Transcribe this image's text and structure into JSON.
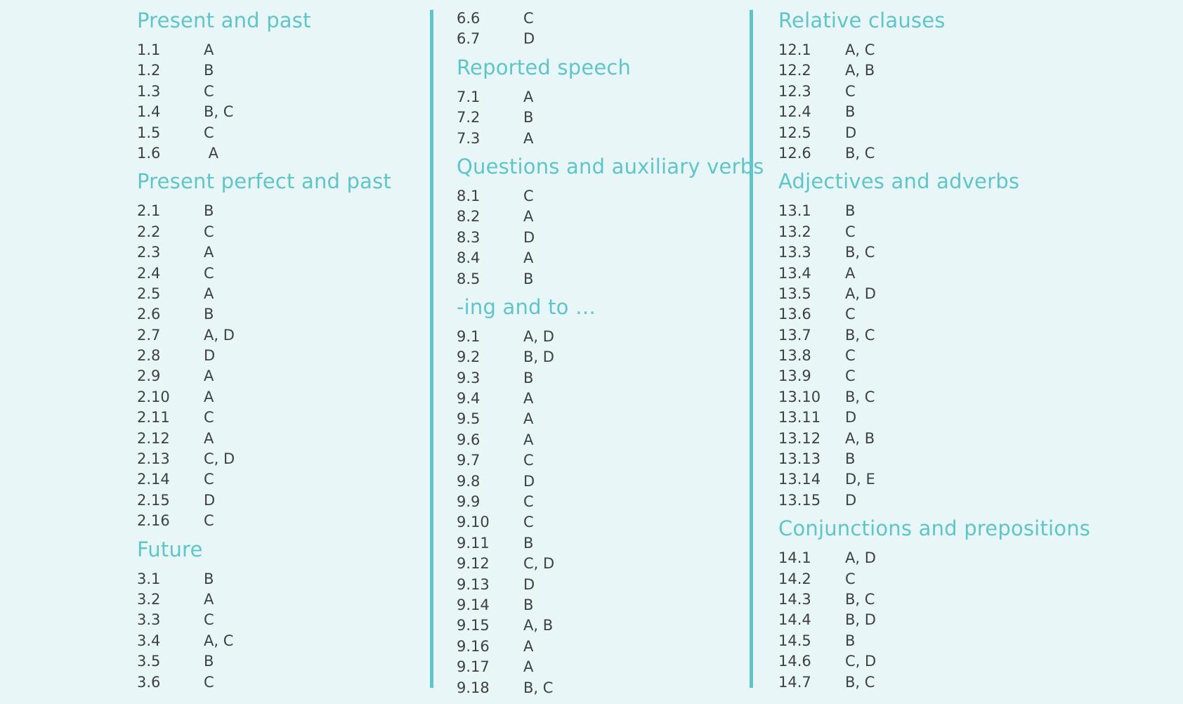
{
  "columns": [
    {
      "sections": [
        {
          "title": "Present and past",
          "rows": [
            {
              "num": "1.1",
              "ans": "A"
            },
            {
              "num": "1.2",
              "ans": "B"
            },
            {
              "num": "1.3",
              "ans": "C"
            },
            {
              "num": "1.4",
              "ans": "B, C"
            },
            {
              "num": "1.5",
              "ans": "C"
            },
            {
              "num": "1.6",
              "ans": " A"
            }
          ]
        },
        {
          "title": "Present perfect and past",
          "rows": [
            {
              "num": "2.1",
              "ans": "B"
            },
            {
              "num": "2.2",
              "ans": "C"
            },
            {
              "num": "2.3",
              "ans": "A"
            },
            {
              "num": "2.4",
              "ans": "C"
            },
            {
              "num": "2.5",
              "ans": "A"
            },
            {
              "num": "2.6",
              "ans": "B"
            },
            {
              "num": "2.7",
              "ans": "A, D"
            },
            {
              "num": "2.8",
              "ans": "D"
            },
            {
              "num": "2.9",
              "ans": "A"
            },
            {
              "num": "2.10",
              "ans": "A"
            },
            {
              "num": "2.11",
              "ans": "C"
            },
            {
              "num": "2.12",
              "ans": "A"
            },
            {
              "num": "2.13",
              "ans": "C, D"
            },
            {
              "num": "2.14",
              "ans": "C"
            },
            {
              "num": "2.15",
              "ans": "D"
            },
            {
              "num": "2.16",
              "ans": "C"
            }
          ]
        },
        {
          "title": "Future",
          "rows": [
            {
              "num": "3.1",
              "ans": "B"
            },
            {
              "num": "3.2",
              "ans": "A"
            },
            {
              "num": "3.3",
              "ans": "C"
            },
            {
              "num": "3.4",
              "ans": "A, C"
            },
            {
              "num": "3.5",
              "ans": "B"
            },
            {
              "num": "3.6",
              "ans": "C"
            }
          ]
        }
      ]
    },
    {
      "sections": [
        {
          "title": "",
          "rows": [
            {
              "num": "6.6",
              "ans": "C"
            },
            {
              "num": "6.7",
              "ans": "D"
            }
          ]
        },
        {
          "title": "Reported speech",
          "rows": [
            {
              "num": "7.1",
              "ans": "A"
            },
            {
              "num": "7.2",
              "ans": "B"
            },
            {
              "num": "7.3",
              "ans": "A"
            }
          ]
        },
        {
          "title": "Questions and auxiliary verbs",
          "rows": [
            {
              "num": "8.1",
              "ans": "C"
            },
            {
              "num": "8.2",
              "ans": "A"
            },
            {
              "num": "8.3",
              "ans": "D"
            },
            {
              "num": "8.4",
              "ans": "A"
            },
            {
              "num": "8.5",
              "ans": "B"
            }
          ]
        },
        {
          "title": "-ing and to …",
          "rows": [
            {
              "num": "9.1",
              "ans": "A, D"
            },
            {
              "num": "9.2",
              "ans": "B, D"
            },
            {
              "num": "9.3",
              "ans": "B"
            },
            {
              "num": "9.4",
              "ans": "A"
            },
            {
              "num": "9.5",
              "ans": "A"
            },
            {
              "num": "9.6",
              "ans": "A"
            },
            {
              "num": "9.7",
              "ans": "C"
            },
            {
              "num": "9.8",
              "ans": "D"
            },
            {
              "num": "9.9",
              "ans": "C"
            },
            {
              "num": "9.10",
              "ans": "C"
            },
            {
              "num": "9.11",
              "ans": "B"
            },
            {
              "num": "9.12",
              "ans": "C, D"
            },
            {
              "num": "9.13",
              "ans": "D"
            },
            {
              "num": "9.14",
              "ans": "B"
            },
            {
              "num": "9.15",
              "ans": "A, B"
            },
            {
              "num": "9.16",
              "ans": "A"
            },
            {
              "num": "9.17",
              "ans": "A"
            },
            {
              "num": "9.18",
              "ans": "B, C"
            }
          ]
        }
      ]
    },
    {
      "sections": [
        {
          "title": "Relative clauses",
          "rows": [
            {
              "num": "12.1",
              "ans": "A, C"
            },
            {
              "num": "12.2",
              "ans": "A, B"
            },
            {
              "num": "12.3",
              "ans": "C"
            },
            {
              "num": "12.4",
              "ans": "B"
            },
            {
              "num": "12.5",
              "ans": "D"
            },
            {
              "num": "12.6",
              "ans": "B, C"
            }
          ]
        },
        {
          "title": "Adjectives and adverbs",
          "rows": [
            {
              "num": "13.1",
              "ans": "B"
            },
            {
              "num": "13.2",
              "ans": "C"
            },
            {
              "num": "13.3",
              "ans": "B, C"
            },
            {
              "num": "13.4",
              "ans": "A"
            },
            {
              "num": "13.5",
              "ans": "A, D"
            },
            {
              "num": "13.6",
              "ans": "C"
            },
            {
              "num": "13.7",
              "ans": "B, C"
            },
            {
              "num": "13.8",
              "ans": "C"
            },
            {
              "num": "13.9",
              "ans": "C"
            },
            {
              "num": "13.10",
              "ans": "B, C"
            },
            {
              "num": "13.11",
              "ans": "D"
            },
            {
              "num": "13.12",
              "ans": "A, B"
            },
            {
              "num": "13.13",
              "ans": "B"
            },
            {
              "num": "13.14",
              "ans": "D, E"
            },
            {
              "num": "13.15",
              "ans": "D"
            }
          ]
        },
        {
          "title": "Conjunctions and prepositions",
          "rows": [
            {
              "num": "14.1",
              "ans": "A, D"
            },
            {
              "num": "14.2",
              "ans": "C"
            },
            {
              "num": "14.3",
              "ans": "B, C"
            },
            {
              "num": "14.4",
              "ans": "B, D"
            },
            {
              "num": "14.5",
              "ans": "B"
            },
            {
              "num": "14.6",
              "ans": "C, D"
            },
            {
              "num": "14.7",
              "ans": "B, C"
            }
          ]
        }
      ]
    }
  ],
  "colors": {
    "background": "#e8f6f8",
    "accent": "#5fc5c9",
    "text": "#404040"
  }
}
